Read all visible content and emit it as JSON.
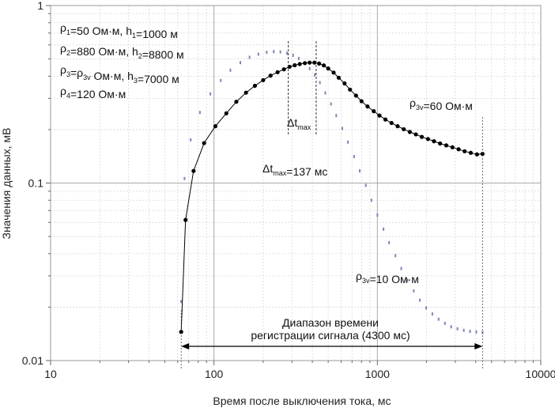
{
  "chart_data": {
    "type": "scatter",
    "xscale": "log",
    "yscale": "log",
    "xlim": [
      10,
      10000
    ],
    "ylim": [
      0.01,
      1
    ],
    "xticks": [
      "10",
      "100",
      "1000",
      "10000"
    ],
    "yticks": [
      "0.01",
      "0.1",
      "1"
    ],
    "xlabel": "Время после выключения тока, мс",
    "ylabel": "Значения данных, мВ",
    "grid": true,
    "params": [
      {
        "a": "ρ",
        "as": "1",
        "b": "=50 Ом·м, h",
        "bs": "1",
        "c": "=1000 м"
      },
      {
        "a": "ρ",
        "as": "2",
        "b": "=880 Ом·м, h",
        "bs": "2",
        "c": "=8800 м"
      },
      {
        "a": "ρ",
        "as": "3",
        "b": "=ρ",
        "bs": "3v",
        "c": " Ом·м, h",
        "cs": "3",
        "d": "=7000 м"
      },
      {
        "a": "ρ",
        "as": "4",
        "b": "=120 Ом·м"
      }
    ],
    "annotations": {
      "dt_max_symbol": "Δt",
      "dt_max_sub": "max",
      "dt_max_value": "=137 мс",
      "range_line1": "Диапазон времени",
      "range_line2": "регистрации сигнала (4300 мс)",
      "range_start_ms": 63,
      "range_end_ms": 4400,
      "dt_start_ms": 285,
      "dt_end_ms": 422
    },
    "series": [
      {
        "label_main": "ρ",
        "label_sub": "3v",
        "label_value": "=60 Ом·м",
        "color": "#000000",
        "style": "line-markers",
        "x": [
          63,
          67,
          75,
          87,
          102,
          119,
          137,
          157,
          178,
          200,
          222,
          245,
          268,
          290,
          312,
          335,
          360,
          385,
          412,
          440,
          470,
          500,
          540,
          580,
          630,
          680,
          740,
          800,
          870,
          950,
          1030,
          1120,
          1220,
          1330,
          1450,
          1580,
          1720,
          1870,
          2040,
          2220,
          2420,
          2640,
          2880,
          3140,
          3420,
          3730,
          4070,
          4400
        ],
        "y": [
          0.0145,
          0.062,
          0.117,
          0.168,
          0.209,
          0.247,
          0.287,
          0.323,
          0.353,
          0.38,
          0.403,
          0.421,
          0.437,
          0.452,
          0.461,
          0.468,
          0.474,
          0.477,
          0.477,
          0.471,
          0.46,
          0.442,
          0.419,
          0.392,
          0.364,
          0.336,
          0.311,
          0.289,
          0.27,
          0.254,
          0.24,
          0.228,
          0.218,
          0.209,
          0.201,
          0.194,
          0.188,
          0.182,
          0.177,
          0.172,
          0.167,
          0.163,
          0.159,
          0.155,
          0.151,
          0.148,
          0.145,
          0.146
        ]
      },
      {
        "label_main": "ρ",
        "label_sub": "3v",
        "label_value": "=10 Ом·м",
        "color": "#7d86b5",
        "style": "dots",
        "x": [
          63,
          66,
          72,
          82,
          95,
          110,
          126,
          145,
          165,
          187,
          210,
          232,
          255,
          280,
          305,
          330,
          357,
          385,
          414,
          445,
          480,
          520,
          560,
          610,
          660,
          720,
          780,
          850,
          920,
          1000,
          1090,
          1180,
          1290,
          1400,
          1530,
          1670,
          1820,
          1990,
          2170,
          2370,
          2590,
          2830,
          3090,
          3380,
          3690,
          4030,
          4400
        ],
        "y": [
          0.0215,
          0.106,
          0.175,
          0.25,
          0.318,
          0.378,
          0.432,
          0.477,
          0.511,
          0.532,
          0.545,
          0.55,
          0.548,
          0.539,
          0.524,
          0.503,
          0.474,
          0.441,
          0.407,
          0.368,
          0.322,
          0.279,
          0.24,
          0.203,
          0.17,
          0.141,
          0.117,
          0.097,
          0.08,
          0.066,
          0.055,
          0.0462,
          0.039,
          0.033,
          0.0283,
          0.0247,
          0.0219,
          0.0198,
          0.0183,
          0.0171,
          0.0162,
          0.0155,
          0.0151,
          0.0148,
          0.0146,
          0.0145,
          0.0144
        ]
      }
    ]
  }
}
